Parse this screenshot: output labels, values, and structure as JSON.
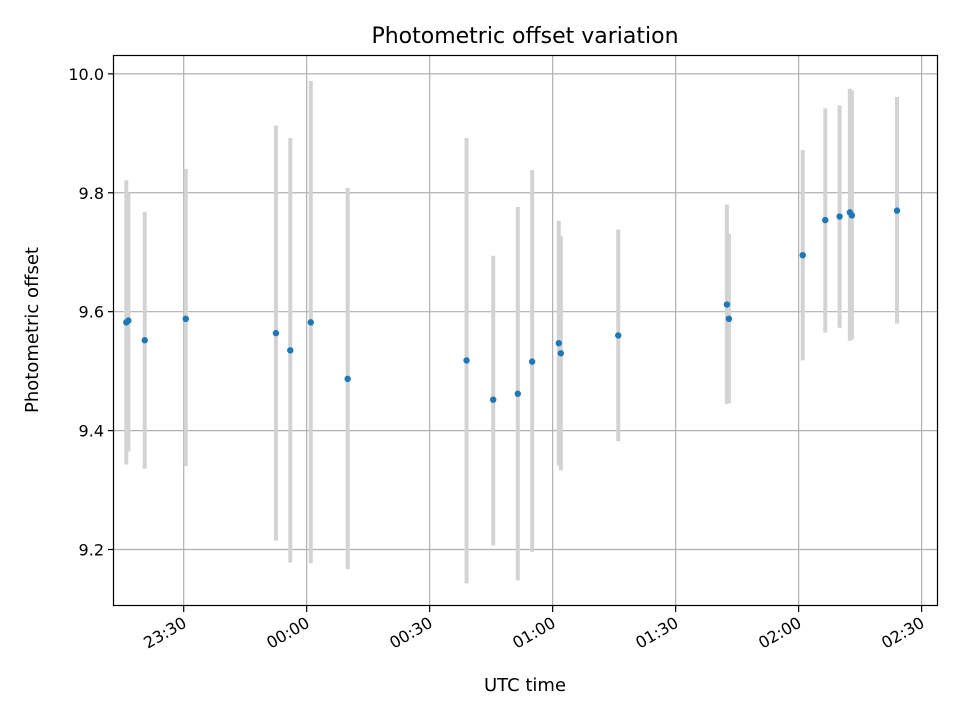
{
  "chart_data": {
    "type": "scatter",
    "title": "Photometric offset variation",
    "xlabel": "UTC time",
    "ylabel": "Photometric offset",
    "x_unit": "UTC time (HH:MM)",
    "xlim": [
      "23:13",
      "02:34"
    ],
    "ylim": [
      9.105,
      10.03
    ],
    "grid": true,
    "x_tick_labels": [
      "23:30",
      "00:00",
      "00:30",
      "01:00",
      "01:30",
      "02:00",
      "02:30"
    ],
    "y_tick_labels": [
      "9.2",
      "9.4",
      "9.6",
      "9.8",
      "10.0"
    ],
    "marker_color": "#1f77b4",
    "errorbar_color": "#d3d3d3",
    "series": [
      {
        "points": [
          {
            "x": "23:16:00",
            "y": 9.582,
            "ylow": 9.343,
            "yhigh": 9.821
          },
          {
            "x": "23:16:30",
            "y": 9.585,
            "ylow": 9.365,
            "yhigh": 9.8
          },
          {
            "x": "23:20:30",
            "y": 9.552,
            "ylow": 9.336,
            "yhigh": 9.768
          },
          {
            "x": "23:30:30",
            "y": 9.588,
            "ylow": 9.34,
            "yhigh": 9.84
          },
          {
            "x": "23:52:30",
            "y": 9.564,
            "ylow": 9.215,
            "yhigh": 9.913
          },
          {
            "x": "23:56:00",
            "y": 9.535,
            "ylow": 9.178,
            "yhigh": 9.892
          },
          {
            "x": "00:01:00",
            "y": 9.582,
            "ylow": 9.177,
            "yhigh": 9.988
          },
          {
            "x": "00:10:00",
            "y": 9.487,
            "ylow": 9.167,
            "yhigh": 9.808
          },
          {
            "x": "00:39:00",
            "y": 9.518,
            "ylow": 9.143,
            "yhigh": 9.892
          },
          {
            "x": "00:45:30",
            "y": 9.452,
            "ylow": 9.207,
            "yhigh": 9.694
          },
          {
            "x": "00:51:30",
            "y": 9.462,
            "ylow": 9.148,
            "yhigh": 9.776
          },
          {
            "x": "00:55:00",
            "y": 9.516,
            "ylow": 9.196,
            "yhigh": 9.838
          },
          {
            "x": "01:01:30",
            "y": 9.547,
            "ylow": 9.341,
            "yhigh": 9.753
          },
          {
            "x": "01:02:00",
            "y": 9.53,
            "ylow": 9.333,
            "yhigh": 9.727
          },
          {
            "x": "01:16:00",
            "y": 9.56,
            "ylow": 9.382,
            "yhigh": 9.738
          },
          {
            "x": "01:42:30",
            "y": 9.612,
            "ylow": 9.445,
            "yhigh": 9.78
          },
          {
            "x": "01:43:00",
            "y": 9.588,
            "ylow": 9.446,
            "yhigh": 9.731
          },
          {
            "x": "02:01:00",
            "y": 9.695,
            "ylow": 9.518,
            "yhigh": 9.872
          },
          {
            "x": "02:06:30",
            "y": 9.754,
            "ylow": 9.565,
            "yhigh": 9.942
          },
          {
            "x": "02:10:00",
            "y": 9.76,
            "ylow": 9.573,
            "yhigh": 9.947
          },
          {
            "x": "02:12:30",
            "y": 9.767,
            "ylow": 9.551,
            "yhigh": 9.975
          },
          {
            "x": "02:13:00",
            "y": 9.762,
            "ylow": 9.553,
            "yhigh": 9.972
          },
          {
            "x": "02:24:00",
            "y": 9.77,
            "ylow": 9.58,
            "yhigh": 9.961
          }
        ]
      }
    ]
  }
}
